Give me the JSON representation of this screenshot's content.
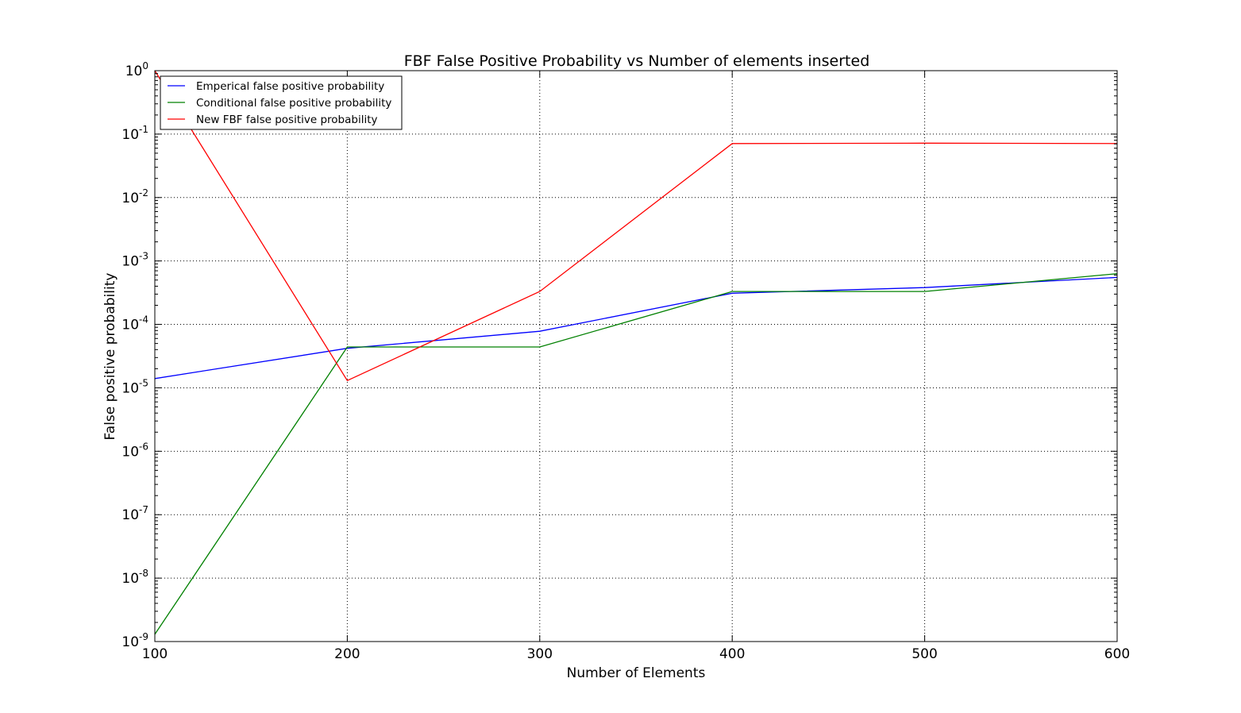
{
  "chart_data": {
    "type": "line",
    "title": "FBF False Positive Probability vs Number of elements inserted",
    "xlabel": "Number of Elements",
    "ylabel": "False positive probability",
    "yscale": "log",
    "xlim": [
      100,
      600
    ],
    "ylim": [
      1e-09,
      1
    ],
    "x_ticks": [
      100,
      200,
      300,
      400,
      500,
      600
    ],
    "y_ticks": [
      {
        "value": 1e-09,
        "base": "10",
        "exp": "-9"
      },
      {
        "value": 1e-08,
        "base": "10",
        "exp": "-8"
      },
      {
        "value": 1e-07,
        "base": "10",
        "exp": "-7"
      },
      {
        "value": 1e-06,
        "base": "10",
        "exp": "-6"
      },
      {
        "value": 1e-05,
        "base": "10",
        "exp": "-5"
      },
      {
        "value": 0.0001,
        "base": "10",
        "exp": "-4"
      },
      {
        "value": 0.001,
        "base": "10",
        "exp": "-3"
      },
      {
        "value": 0.01,
        "base": "10",
        "exp": "-2"
      },
      {
        "value": 0.1,
        "base": "10",
        "exp": "-1"
      },
      {
        "value": 1,
        "base": "10",
        "exp": "0"
      }
    ],
    "grid": true,
    "legend_position": "top-left",
    "x": [
      100,
      200,
      300,
      400,
      500,
      600
    ],
    "series": [
      {
        "name": "Emperical false positive probability",
        "color": "#0000ff",
        "values": [
          1.4e-05,
          4.2e-05,
          7.8e-05,
          0.00031,
          0.00038,
          0.00055
        ]
      },
      {
        "name": "Conditional false positive probability",
        "color": "#008000",
        "values": [
          1.3e-09,
          4.4e-05,
          4.4e-05,
          0.00033,
          0.00033,
          0.00063
        ]
      },
      {
        "name": "New FBF false positive probability",
        "color": "#ff0000",
        "values": [
          1.0,
          1.3e-05,
          0.00033,
          0.071,
          0.072,
          0.071
        ]
      }
    ]
  }
}
